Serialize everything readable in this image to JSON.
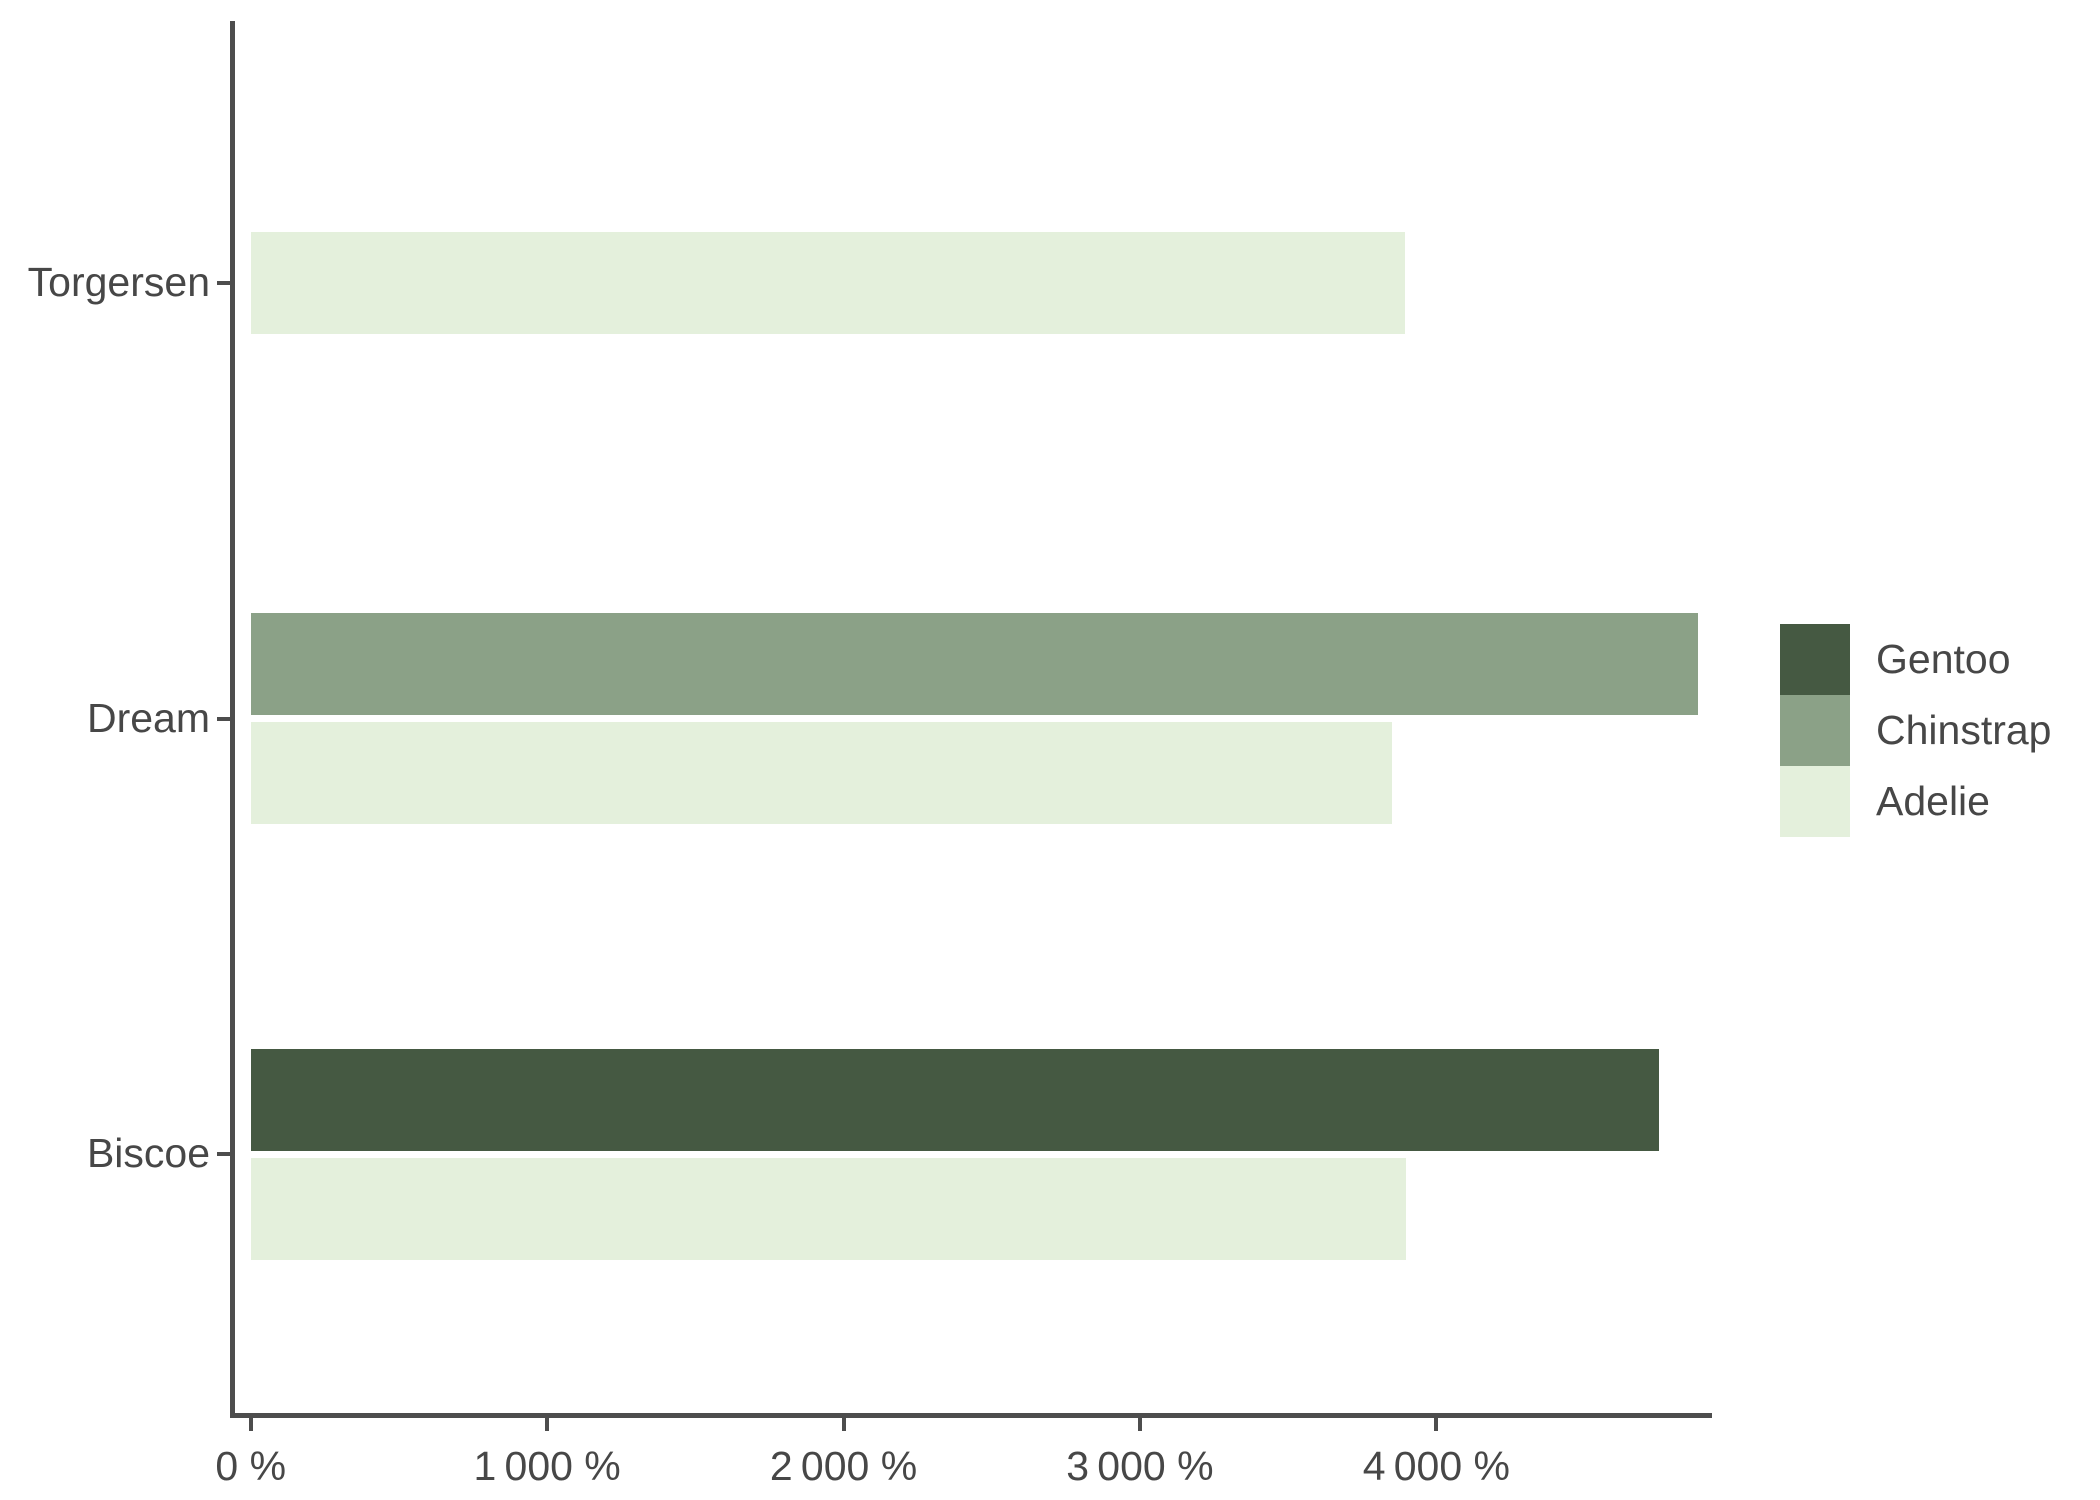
{
  "chart_data": {
    "type": "bar",
    "orientation": "horizontal",
    "title": "",
    "xlabel": "",
    "ylabel": "",
    "unit": "%",
    "categories": [
      "Torgersen",
      "Dream",
      "Biscoe"
    ],
    "series": [
      {
        "name": "Gentoo",
        "color": "#455942",
        "values": [
          null,
          null,
          4750
        ]
      },
      {
        "name": "Chinstrap",
        "color": "#8BA187",
        "values": [
          null,
          4883,
          null
        ]
      },
      {
        "name": "Adelie",
        "color": "#E4F0DC",
        "values": [
          3895,
          3850,
          3898
        ]
      }
    ],
    "x_ticks": [
      {
        "value": 0,
        "label": "0 %"
      },
      {
        "value": 1000,
        "label": "1 000 %"
      },
      {
        "value": 2000,
        "label": "2 000 %"
      },
      {
        "value": 3000,
        "label": "3 000 %"
      },
      {
        "value": 4000,
        "label": "4 000 %"
      }
    ],
    "xlim": [
      -70,
      4930
    ],
    "grid": false,
    "legend_position": "right",
    "legend_order": [
      "Gentoo",
      "Chinstrap",
      "Adelie"
    ],
    "axis_color": "#4D4D4D",
    "text_color": "#474747",
    "background_color": "#FFFFFF"
  }
}
